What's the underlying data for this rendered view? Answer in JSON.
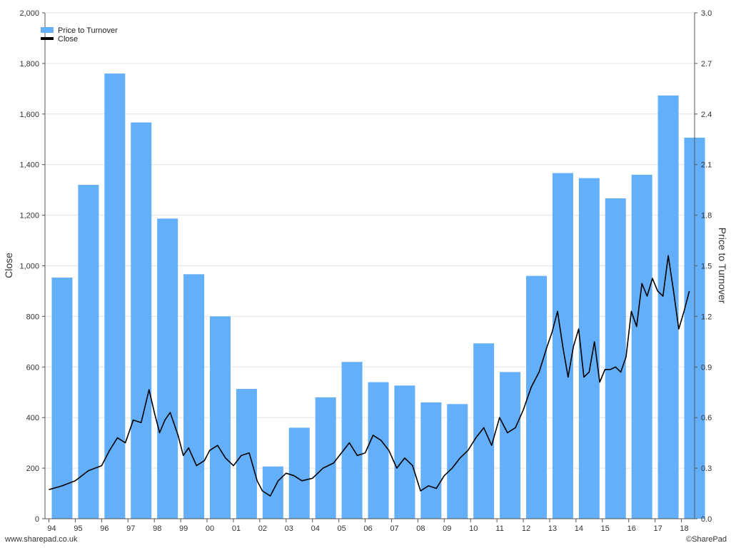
{
  "chart_data": {
    "type": "bar",
    "categories": [
      "94",
      "95",
      "96",
      "97",
      "98",
      "99",
      "00",
      "01",
      "02",
      "03",
      "04",
      "05",
      "06",
      "07",
      "08",
      "09",
      "10",
      "11",
      "12",
      "13",
      "14",
      "15",
      "16",
      "17",
      "18"
    ],
    "series": [
      {
        "name": "Price to Turnover",
        "type": "bar",
        "axis": "right",
        "color": "#64aff9",
        "values": [
          1.43,
          1.98,
          2.64,
          2.35,
          1.78,
          1.45,
          1.2,
          0.77,
          0.31,
          0.54,
          0.72,
          0.93,
          0.81,
          0.79,
          0.69,
          0.68,
          1.04,
          0.87,
          1.44,
          2.05,
          2.02,
          1.9,
          2.04,
          2.51,
          2.26
        ]
      },
      {
        "name": "Close",
        "type": "line",
        "axis": "left",
        "color": "#000000",
        "x": [
          1994.0,
          1994.5,
          1995.0,
          1995.5,
          1996.0,
          1996.3,
          1996.6,
          1996.9,
          1997.2,
          1997.5,
          1997.8,
          1998.0,
          1998.2,
          1998.4,
          1998.6,
          1998.9,
          1999.1,
          1999.3,
          1999.6,
          1999.9,
          2000.1,
          2000.4,
          2000.7,
          2001.0,
          2001.3,
          2001.6,
          2001.9,
          2002.1,
          2002.4,
          2002.7,
          2003.0,
          2003.3,
          2003.6,
          2004.0,
          2004.4,
          2004.8,
          2005.1,
          2005.4,
          2005.7,
          2006.0,
          2006.3,
          2006.6,
          2006.9,
          2007.2,
          2007.5,
          2007.8,
          2008.1,
          2008.4,
          2008.7,
          2009.0,
          2009.3,
          2009.6,
          2009.9,
          2010.2,
          2010.5,
          2010.8,
          2011.1,
          2011.4,
          2011.7,
          2012.0,
          2012.3,
          2012.6,
          2012.9,
          2013.1,
          2013.3,
          2013.5,
          2013.7,
          2013.9,
          2014.1,
          2014.3,
          2014.5,
          2014.7,
          2014.9,
          2015.1,
          2015.3,
          2015.5,
          2015.7,
          2015.9,
          2016.1,
          2016.3,
          2016.5,
          2016.7,
          2016.9,
          2017.1,
          2017.3,
          2017.5,
          2017.7,
          2017.9,
          2018.1,
          2018.3
        ],
        "y": [
          115,
          130,
          150,
          190,
          210,
          270,
          320,
          300,
          390,
          380,
          510,
          420,
          340,
          390,
          420,
          330,
          250,
          280,
          210,
          230,
          270,
          290,
          240,
          210,
          250,
          260,
          150,
          110,
          90,
          150,
          180,
          170,
          150,
          160,
          200,
          220,
          260,
          300,
          250,
          260,
          330,
          310,
          270,
          200,
          240,
          210,
          110,
          130,
          120,
          170,
          200,
          240,
          270,
          320,
          360,
          290,
          400,
          340,
          360,
          430,
          520,
          580,
          680,
          740,
          820,
          680,
          560,
          680,
          750,
          560,
          580,
          700,
          540,
          590,
          590,
          600,
          580,
          640,
          820,
          760,
          930,
          880,
          950,
          900,
          880,
          1040,
          900,
          750,
          820,
          900
        ]
      }
    ],
    "xlim": [
      1993.85,
      2018.5
    ],
    "ylim": [
      0,
      2000
    ],
    "y2lim": [
      0,
      3.0
    ],
    "xlabel": "",
    "ylabel": "Close",
    "y2label": "Price to Turnover",
    "yticks": [
      "0",
      "200",
      "400",
      "600",
      "800",
      "1,000",
      "1,200",
      "1,400",
      "1,600",
      "1,800",
      "2,000"
    ],
    "y2ticks": [
      "0.0",
      "0.3",
      "0.6",
      "0.9",
      "1.2",
      "1.5",
      "1.8",
      "2.1",
      "2.4",
      "2.7",
      "3.0"
    ],
    "grid": true,
    "legend": "top-left"
  },
  "footer": {
    "left": "www.sharepad.co.uk",
    "right": "©SharePad"
  }
}
